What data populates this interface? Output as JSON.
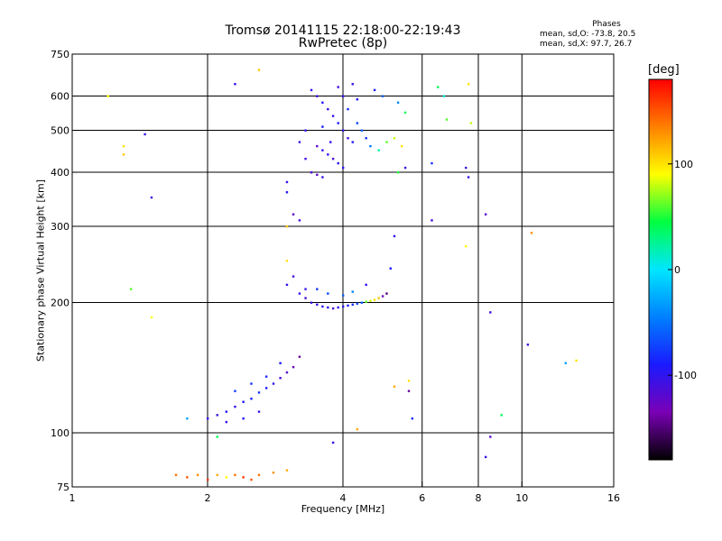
{
  "chart_data": {
    "type": "scatter",
    "title": "Tromsø 20141115 22:18:00-22:19:43",
    "subtitle": "RwPretec (8p)",
    "phase_header": "Phases",
    "phase_line1": "mean, sd,O: -73.8, 20.5",
    "phase_line2": "mean, sd,X:  97.7, 26.7",
    "xlabel": "Frequency [MHz]",
    "ylabel": "Stationary phase Virtual Height [km]",
    "x_scale": "log",
    "y_scale": "log",
    "xlim": [
      1,
      16
    ],
    "ylim": [
      75,
      750
    ],
    "x_ticks": [
      1,
      2,
      4,
      6,
      8,
      10,
      16
    ],
    "y_ticks": [
      75,
      100,
      200,
      300,
      400,
      500,
      600,
      750
    ],
    "x_gridlines": [
      2,
      4,
      6,
      8,
      10
    ],
    "y_gridlines": [
      100,
      200,
      300,
      400,
      500,
      600
    ],
    "grid": true,
    "colorbar": {
      "label": "[deg]",
      "range": [
        -180,
        180
      ],
      "ticks": [
        "100",
        "0",
        "-100"
      ],
      "tick_values": [
        100,
        0,
        -100
      ],
      "colormap": [
        "#000000",
        "#7a00b5",
        "#1a1aff",
        "#0080ff",
        "#00e6ff",
        "#00ff40",
        "#ffff00",
        "#ff8000",
        "#ff0000"
      ]
    },
    "series": [
      {
        "points": [
          [
            3.4,
            620,
            -100
          ],
          [
            3.5,
            600,
            -110
          ],
          [
            3.6,
            580,
            -95
          ],
          [
            3.7,
            560,
            -105
          ],
          [
            3.8,
            540,
            -100
          ],
          [
            3.9,
            520,
            -90
          ],
          [
            4.0,
            500,
            -100
          ],
          [
            4.1,
            480,
            -110
          ],
          [
            4.2,
            470,
            -95
          ],
          [
            3.5,
            460,
            -120
          ],
          [
            3.6,
            450,
            -105
          ],
          [
            3.7,
            440,
            -100
          ],
          [
            3.8,
            430,
            -115
          ],
          [
            3.9,
            420,
            -100
          ],
          [
            4.0,
            410,
            -95
          ],
          [
            3.4,
            400,
            -110
          ],
          [
            3.5,
            395,
            -120
          ],
          [
            3.6,
            390,
            -100
          ],
          [
            4.3,
            520,
            -70
          ],
          [
            4.4,
            500,
            -60
          ],
          [
            4.5,
            480,
            -80
          ],
          [
            4.6,
            460,
            -50
          ],
          [
            4.8,
            450,
            20
          ],
          [
            5.0,
            470,
            60
          ],
          [
            5.2,
            480,
            80
          ],
          [
            5.4,
            460,
            100
          ],
          [
            5.5,
            550,
            40
          ],
          [
            5.3,
            580,
            -40
          ],
          [
            4.9,
            600,
            -60
          ],
          [
            4.7,
            620,
            -90
          ],
          [
            4.2,
            640,
            -100
          ],
          [
            3.9,
            630,
            -110
          ],
          [
            3.3,
            500,
            -100
          ],
          [
            3.2,
            470,
            -105
          ],
          [
            3.3,
            430,
            -110
          ],
          [
            4.1,
            560,
            -85
          ],
          [
            4.3,
            590,
            -95
          ],
          [
            4.0,
            600,
            -100
          ],
          [
            3.6,
            510,
            -90
          ],
          [
            3.75,
            470,
            -100
          ],
          [
            3.1,
            320,
            -120
          ],
          [
            3.2,
            310,
            -110
          ],
          [
            3.0,
            380,
            -100
          ],
          [
            3.0,
            360,
            -95
          ],
          [
            3.2,
            210,
            -100
          ],
          [
            3.3,
            205,
            -110
          ],
          [
            3.4,
            200,
            -105
          ],
          [
            3.5,
            198,
            -100
          ],
          [
            3.6,
            196,
            -95
          ],
          [
            3.7,
            195,
            -100
          ],
          [
            3.8,
            194,
            -110
          ],
          [
            3.9,
            195,
            -100
          ],
          [
            4.0,
            196,
            -95
          ],
          [
            4.1,
            197,
            -90
          ],
          [
            4.2,
            198,
            -80
          ],
          [
            4.3,
            199,
            -70
          ],
          [
            4.4,
            200,
            -60
          ],
          [
            4.5,
            201,
            60
          ],
          [
            4.6,
            202,
            80
          ],
          [
            4.7,
            203,
            100
          ],
          [
            4.8,
            205,
            110
          ],
          [
            4.9,
            207,
            -130
          ],
          [
            5.0,
            210,
            -150
          ],
          [
            3.5,
            215,
            -80
          ],
          [
            3.7,
            210,
            -70
          ],
          [
            4.0,
            208,
            -60
          ],
          [
            4.2,
            212,
            -40
          ],
          [
            4.5,
            220,
            -100
          ],
          [
            5.1,
            240,
            -90
          ],
          [
            3.0,
            220,
            -100
          ],
          [
            3.1,
            230,
            -110
          ],
          [
            3.3,
            215,
            -105
          ],
          [
            2.0,
            108,
            -100
          ],
          [
            2.1,
            110,
            -105
          ],
          [
            2.2,
            112,
            -95
          ],
          [
            2.3,
            115,
            -100
          ],
          [
            2.4,
            118,
            -90
          ],
          [
            2.5,
            120,
            -85
          ],
          [
            2.6,
            124,
            -80
          ],
          [
            2.7,
            127,
            -90
          ],
          [
            2.8,
            130,
            -100
          ],
          [
            2.9,
            134,
            -110
          ],
          [
            3.0,
            138,
            -120
          ],
          [
            3.1,
            142,
            -130
          ],
          [
            2.3,
            125,
            -75
          ],
          [
            2.5,
            130,
            -80
          ],
          [
            2.7,
            135,
            -85
          ],
          [
            2.9,
            145,
            -90
          ],
          [
            3.2,
            150,
            -140
          ],
          [
            2.2,
            106,
            -100
          ],
          [
            2.4,
            108,
            -95
          ],
          [
            2.6,
            112,
            -105
          ],
          [
            1.7,
            80,
            140
          ],
          [
            1.8,
            79,
            150
          ],
          [
            1.9,
            80,
            130
          ],
          [
            2.0,
            78,
            160
          ],
          [
            2.1,
            80,
            120
          ],
          [
            2.2,
            79,
            90
          ],
          [
            2.3,
            80,
            140
          ],
          [
            2.4,
            79,
            160
          ],
          [
            2.5,
            78,
            150
          ],
          [
            2.6,
            80,
            140
          ],
          [
            2.8,
            81,
            130
          ],
          [
            3.0,
            82,
            120
          ],
          [
            6.5,
            630,
            40
          ],
          [
            6.7,
            600,
            10
          ],
          [
            6.8,
            530,
            60
          ],
          [
            7.6,
            640,
            100
          ],
          [
            7.7,
            520,
            80
          ],
          [
            7.5,
            410,
            -110
          ],
          [
            7.6,
            390,
            -100
          ],
          [
            6.3,
            420,
            -80
          ],
          [
            6.3,
            310,
            -110
          ],
          [
            7.5,
            270,
            90
          ],
          [
            8.3,
            320,
            -120
          ],
          [
            8.5,
            190,
            -110
          ],
          [
            8.5,
            98,
            -120
          ],
          [
            8.3,
            88,
            -100
          ],
          [
            9.0,
            110,
            40
          ],
          [
            10.3,
            160,
            -110
          ],
          [
            10.5,
            290,
            130
          ],
          [
            12.5,
            145,
            -30
          ],
          [
            13.2,
            147,
            100
          ],
          [
            1.3,
            460,
            100
          ],
          [
            1.3,
            440,
            110
          ],
          [
            1.5,
            350,
            -110
          ],
          [
            1.2,
            600,
            90
          ],
          [
            1.45,
            490,
            -100
          ],
          [
            1.35,
            215,
            60
          ],
          [
            1.5,
            185,
            90
          ],
          [
            1.8,
            108,
            -30
          ],
          [
            2.1,
            98,
            40
          ],
          [
            2.6,
            690,
            110
          ],
          [
            2.3,
            640,
            -100
          ],
          [
            3.0,
            300,
            110
          ],
          [
            3.0,
            250,
            100
          ],
          [
            4.3,
            102,
            120
          ],
          [
            3.8,
            95,
            -100
          ],
          [
            5.2,
            128,
            120
          ],
          [
            5.6,
            125,
            -140
          ],
          [
            5.7,
            108,
            -80
          ],
          [
            5.6,
            132,
            100
          ],
          [
            5.2,
            285,
            -100
          ],
          [
            5.5,
            410,
            -110
          ],
          [
            5.3,
            400,
            50
          ]
        ]
      }
    ]
  }
}
